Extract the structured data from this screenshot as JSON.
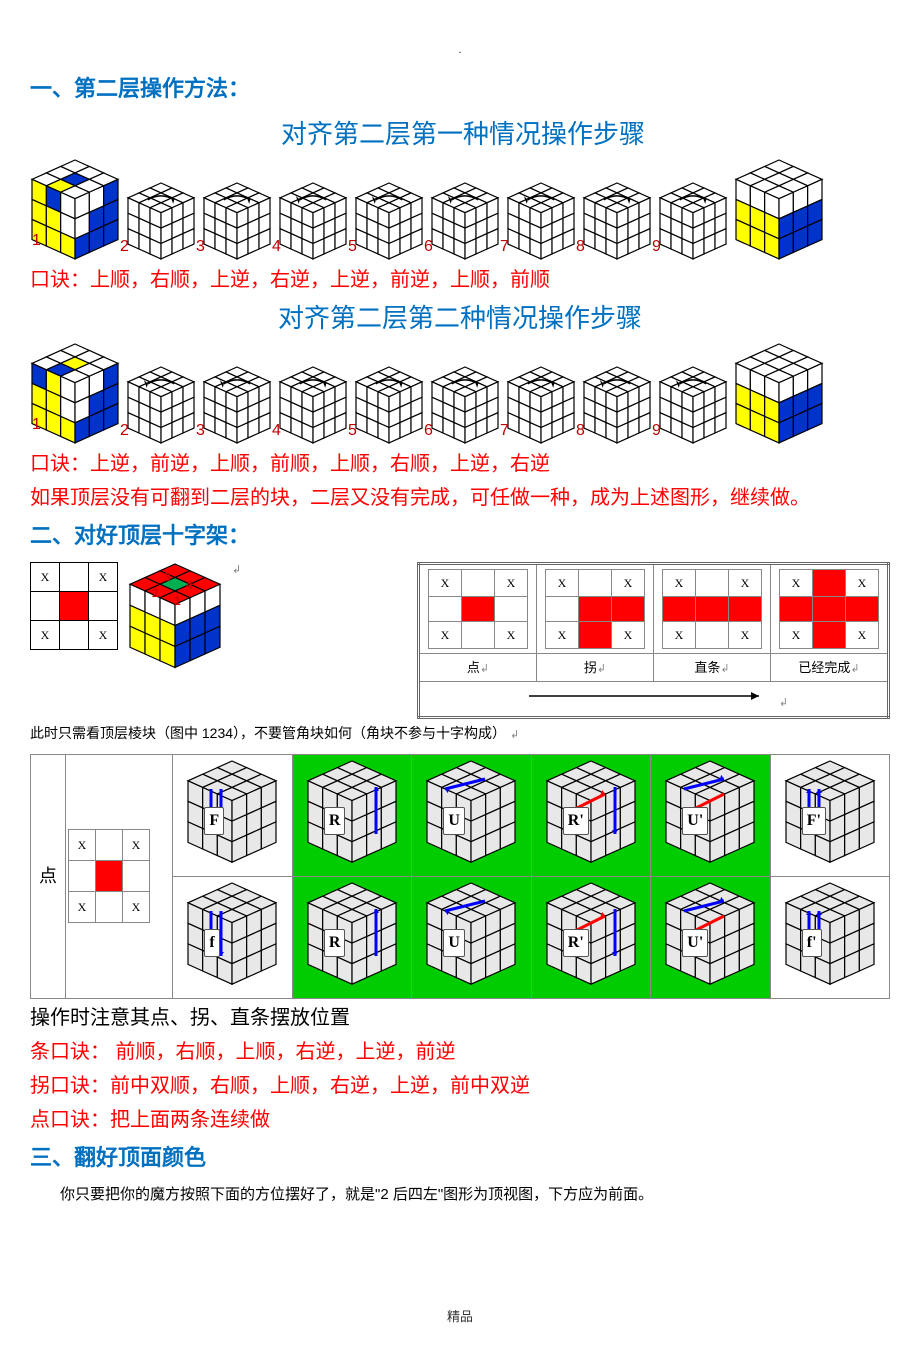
{
  "leader_dot": ".",
  "section1": {
    "title": "一、第二层操作方法：",
    "seq1_title": "对齐第二层第一种情况操作步骤",
    "seq2_title": "对齐第二层第二种情况操作步骤",
    "step_numbers1": [
      "1",
      "2",
      "3",
      "4",
      "5",
      "6",
      "7",
      "8",
      "9"
    ],
    "step_numbers2": [
      "1",
      "2",
      "3",
      "4",
      "5",
      "6",
      "7",
      "8",
      "9"
    ],
    "koujue1": "口诀：上顺，右顺，上逆，右逆，上逆，前逆，上顺，前顺",
    "koujue2": "口诀：上逆，前逆，上顺，前顺，上顺，右顺，上逆，右逆",
    "note": "如果顶层没有可翻到二层的块，二层又没有完成，可任做一种，成为上述图形，继续做。",
    "colors": {
      "yellow": "#ffff00",
      "blue": "#0033cc",
      "white": "#ffffff",
      "line": "#000000"
    }
  },
  "section2": {
    "title": "二、对好顶层十字架：",
    "note": "此时只需看顶层棱块（图中 1234），不要管角块如何（角块不参与十字构成）",
    "grid_X": "X",
    "red": "#ff0000",
    "green_marker": "#00b050",
    "state_labels": [
      "点",
      "拐",
      "直条",
      "已经完成"
    ],
    "arrow": "➝",
    "big_row_label": "点",
    "moves_row1": [
      "F",
      "R",
      "U",
      "R'",
      "U'",
      "F'"
    ],
    "moves_row2": [
      "f",
      "R",
      "U",
      "R'",
      "U'",
      "f'"
    ],
    "caption": "操作时注意其点、拐、直条摆放位置",
    "koujue_tiao": "条口诀： 前顺，右顺，上顺，右逆，上逆，前逆",
    "koujue_guai": "拐口诀：前中双顺，右顺，上顺，右逆，上逆，前中双逆",
    "koujue_dian": "点口诀：把上面两条连续做",
    "arrow_colors": {
      "blue": "#0000ff",
      "red": "#ff0000"
    },
    "green_bg": "#00cc00",
    "cube_gray": "#e8e8e8"
  },
  "section3": {
    "title": "三、翻好顶面颜色",
    "para": "你只要把你的魔方按照下面的方位摆好了，就是\"2 后四左\"图形为顶视图，下方应为前面。"
  },
  "footer": "精品"
}
